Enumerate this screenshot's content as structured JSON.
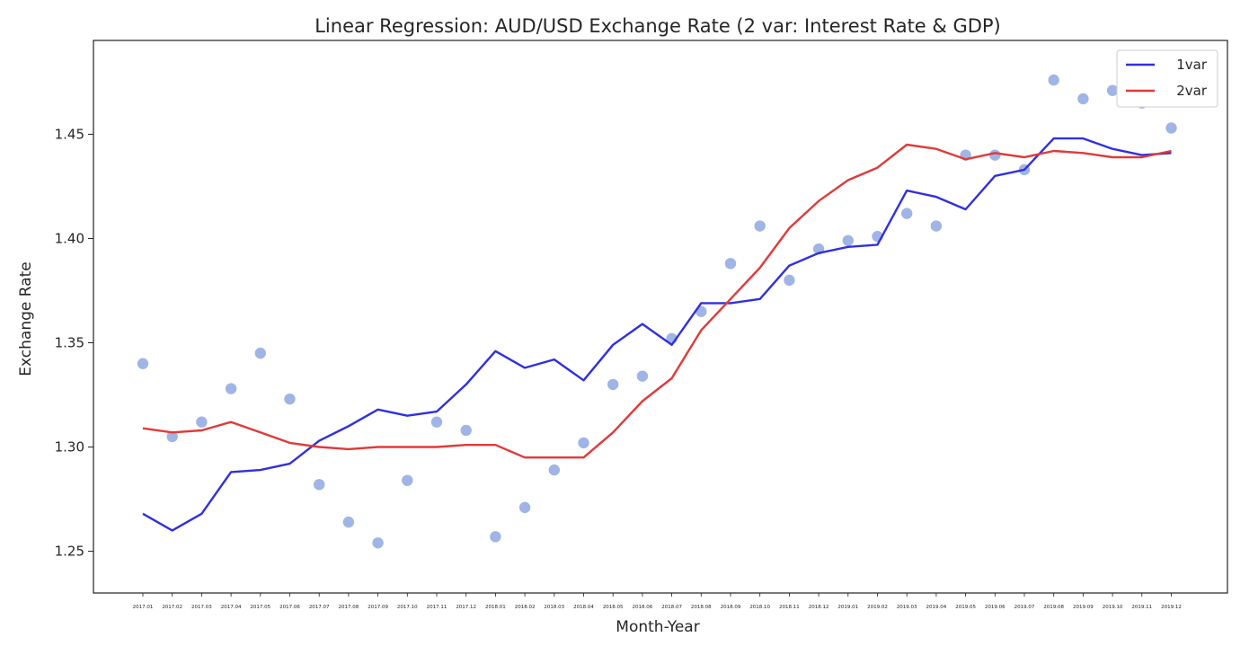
{
  "chart_data": {
    "type": "line",
    "title": "Linear Regression: AUD/USD Exchange Rate (2 var: Interest Rate & GDP)",
    "xlabel": "Month-Year",
    "ylabel": "Exchange Rate",
    "ylim": [
      1.23,
      1.495
    ],
    "yticks": [
      1.25,
      1.3,
      1.35,
      1.4,
      1.45
    ],
    "ytick_labels": [
      "1.25",
      "1.30",
      "1.35",
      "1.40",
      "1.45"
    ],
    "categories": [
      "2017.01",
      "2017.02",
      "2017.03",
      "2017.04",
      "2017.05",
      "2017.06",
      "2017.07",
      "2017.08",
      "2017.09",
      "2017.10",
      "2017.11",
      "2017.12",
      "2018.01",
      "2018.02",
      "2018.03",
      "2018.04",
      "2018.05",
      "2018.06",
      "2018.07",
      "2018.08",
      "2018.09",
      "2018.10",
      "2018.11",
      "2018.12",
      "2019.01",
      "2019.02",
      "2019.03",
      "2019.04",
      "2019.05",
      "2019.06",
      "2019.07",
      "2019.08",
      "2019.09",
      "2019.10",
      "2019.11",
      "2019.12"
    ],
    "grid": false,
    "legend_position": "top-right",
    "scatter": {
      "color": "#8fa8e0",
      "values": [
        1.34,
        1.305,
        1.312,
        1.328,
        1.345,
        1.323,
        1.282,
        1.264,
        1.254,
        1.284,
        1.312,
        1.308,
        1.257,
        1.271,
        1.289,
        1.302,
        1.33,
        1.334,
        1.352,
        1.365,
        1.388,
        1.406,
        1.38,
        1.395,
        1.399,
        1.401,
        1.412,
        1.406,
        1.44,
        1.44,
        1.433,
        1.476,
        1.467,
        1.471,
        1.465,
        1.453
      ]
    },
    "series": [
      {
        "name": "1var",
        "color": "#3030e0",
        "values": [
          1.268,
          1.26,
          1.268,
          1.288,
          1.289,
          1.292,
          1.303,
          1.31,
          1.318,
          1.315,
          1.317,
          1.33,
          1.346,
          1.338,
          1.342,
          1.332,
          1.349,
          1.359,
          1.349,
          1.369,
          1.369,
          1.371,
          1.387,
          1.393,
          1.396,
          1.397,
          1.423,
          1.42,
          1.414,
          1.43,
          1.433,
          1.448,
          1.448,
          1.443,
          1.44,
          1.441
        ]
      },
      {
        "name": "2var",
        "color": "#e03a3a",
        "values": [
          1.309,
          1.307,
          1.308,
          1.312,
          1.307,
          1.302,
          1.3,
          1.299,
          1.3,
          1.3,
          1.3,
          1.301,
          1.301,
          1.295,
          1.295,
          1.295,
          1.307,
          1.322,
          1.333,
          1.356,
          1.371,
          1.386,
          1.405,
          1.418,
          1.428,
          1.434,
          1.445,
          1.443,
          1.438,
          1.441,
          1.439,
          1.442,
          1.441,
          1.439,
          1.439,
          1.442
        ]
      }
    ]
  }
}
